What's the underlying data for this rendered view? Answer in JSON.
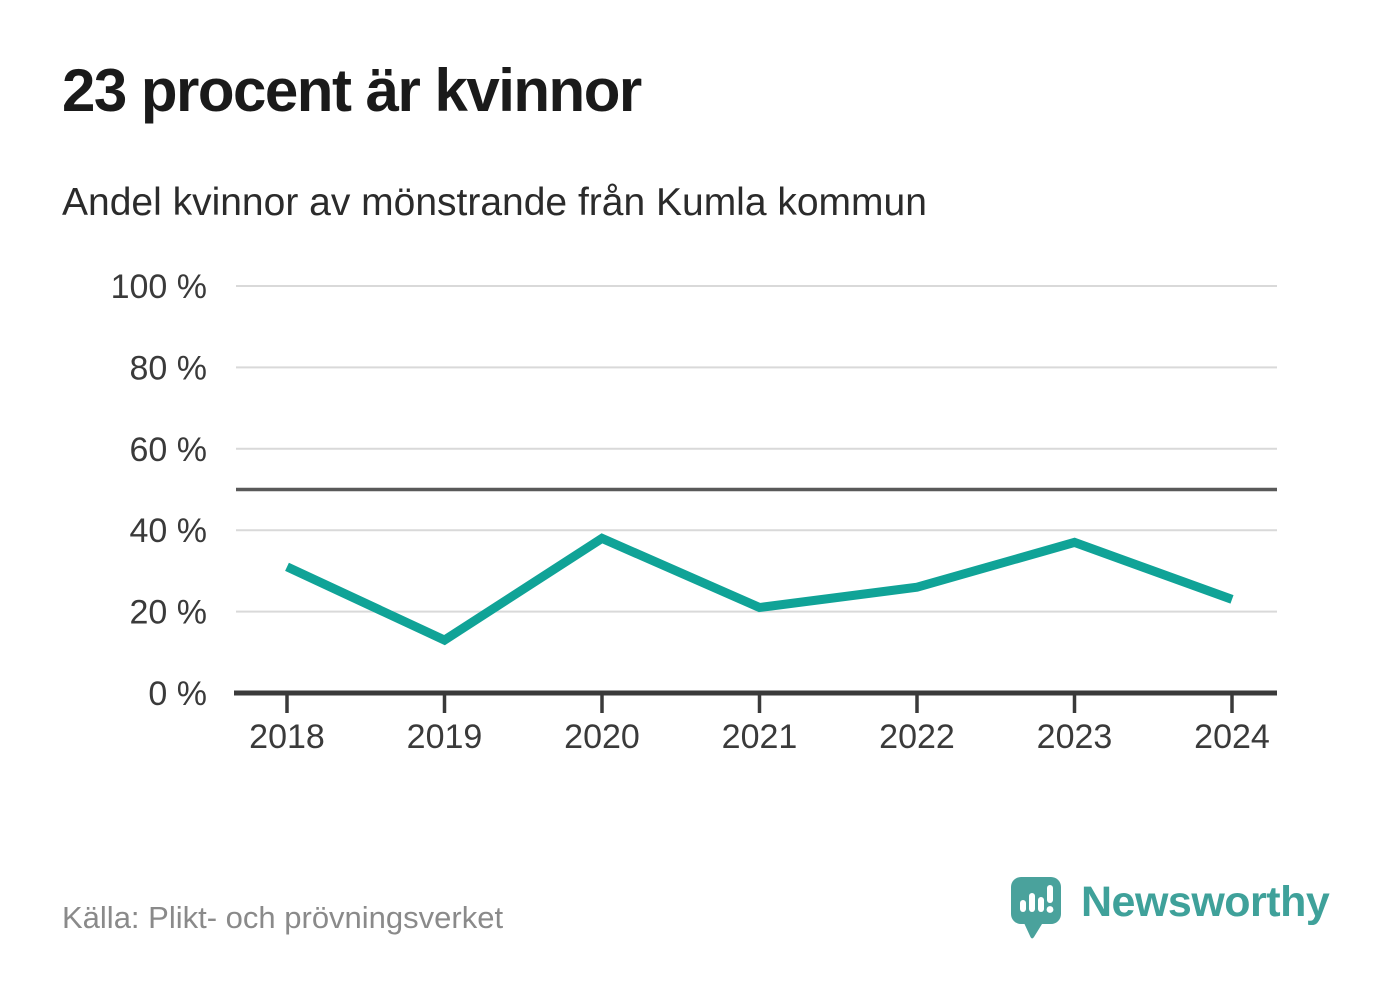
{
  "header": {
    "title": "23 procent är kvinnor",
    "subtitle": "Andel kvinnor av mönstrande från Kumla kommun"
  },
  "footer": {
    "source": "Källa: Plikt- och prövningsverket"
  },
  "logo": {
    "wordmark": "Newsworthy",
    "icon": "newsworthy-badge-icon",
    "color": "#3fa19a"
  },
  "chart_data": {
    "type": "line",
    "title": "23 procent är kvinnor",
    "subtitle": "Andel kvinnor av mönstrande från Kumla kommun",
    "x": [
      "2018",
      "2019",
      "2020",
      "2021",
      "2022",
      "2023",
      "2024"
    ],
    "series": [
      {
        "name": "Andel kvinnor av mönstrande",
        "values": [
          31,
          13,
          38,
          21,
          26,
          37,
          23
        ]
      }
    ],
    "xlabel": "",
    "ylabel": "",
    "ylim": [
      0,
      100
    ],
    "yticks": [
      0,
      20,
      40,
      60,
      80,
      100
    ],
    "ytick_suffix": " %",
    "reference_line": 50,
    "grid": true,
    "legend": "none",
    "colors": {
      "line": "#10a397",
      "grid": "#d9d9d9",
      "reference_line": "#595959",
      "axis": "#3a3a3a",
      "tick_label": "#3a3a3a"
    }
  }
}
